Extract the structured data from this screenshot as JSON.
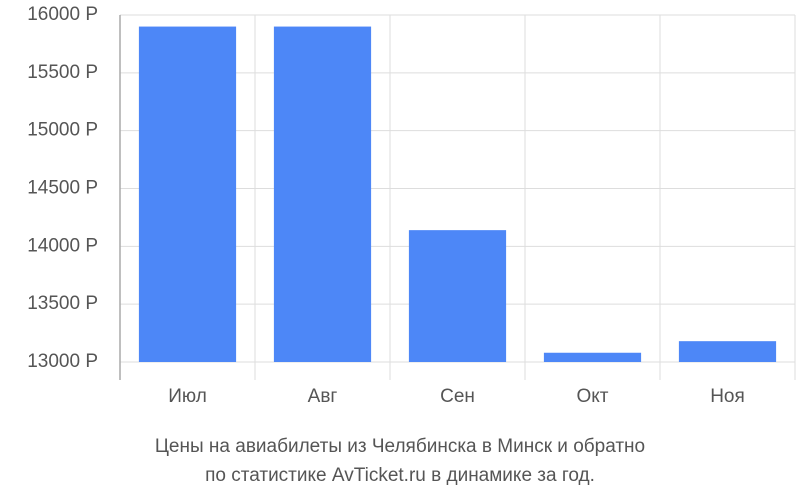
{
  "chart_data": {
    "type": "bar",
    "title_lines": [
      "Цены на авиабилеты из Челябинска в Минск и обратно",
      "по статистике AvTicket.ru в динамике за год."
    ],
    "categories": [
      "Июл",
      "Авг",
      "Сен",
      "Окт",
      "Ноя"
    ],
    "values": [
      15900,
      15900,
      14140,
      13080,
      13180
    ],
    "color": "#4d87f7",
    "ylim": [
      13000,
      16000
    ],
    "yticks": [
      {
        "value": 13000,
        "label": "13000 Р"
      },
      {
        "value": 13500,
        "label": "13500 Р"
      },
      {
        "value": 14000,
        "label": "14000 Р"
      },
      {
        "value": 14500,
        "label": "14500 Р"
      },
      {
        "value": 15000,
        "label": "15000 Р"
      },
      {
        "value": 15500,
        "label": "15500 Р"
      },
      {
        "value": 16000,
        "label": "16000 Р"
      }
    ],
    "grid": true
  }
}
